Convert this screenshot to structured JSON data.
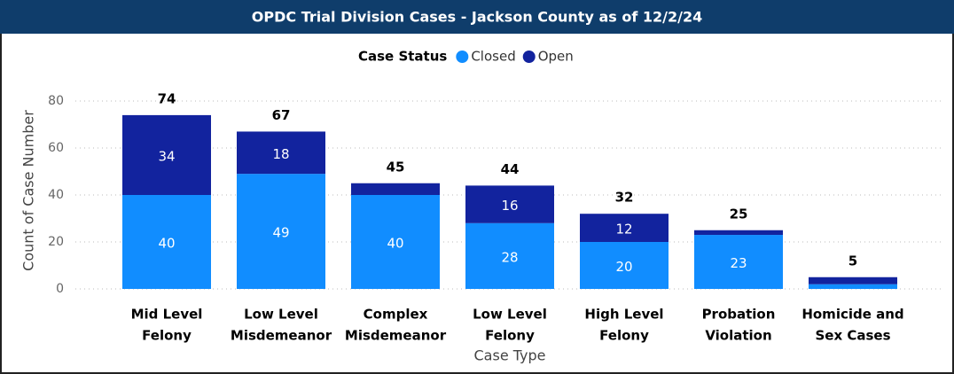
{
  "chart_data": {
    "type": "stacked_bar",
    "title": "OPDC Trial Division Cases - Jackson County as of 12/2/24",
    "legend_title": "Case Status",
    "x_label": "Case Type",
    "y_label": "Count of Case Number",
    "categories": [
      [
        "Mid Level",
        "Felony"
      ],
      [
        "Low Level",
        "Misdemeanor"
      ],
      [
        "Complex",
        "Misdemeanor"
      ],
      [
        "Low Level",
        "Felony"
      ],
      [
        "High Level",
        "Felony"
      ],
      [
        "Probation",
        "Violation"
      ],
      [
        "Homicide and",
        "Sex Cases"
      ]
    ],
    "series": [
      {
        "name": "Closed",
        "color": "#118dff",
        "values": [
          40,
          49,
          40,
          28,
          20,
          23,
          2
        ],
        "value_labels": [
          "40",
          "49",
          "40",
          "28",
          "20",
          "23",
          null
        ]
      },
      {
        "name": "Open",
        "color": "#12239e",
        "values": [
          34,
          18,
          5,
          16,
          12,
          2,
          3
        ],
        "value_labels": [
          "34",
          "18",
          null,
          "16",
          "12",
          null,
          null
        ]
      }
    ],
    "totals": [
      74,
      67,
      45,
      44,
      32,
      25,
      5
    ],
    "ylim": [
      0,
      80
    ],
    "yticks": [
      0,
      20,
      40,
      60,
      80
    ],
    "grid": true
  }
}
